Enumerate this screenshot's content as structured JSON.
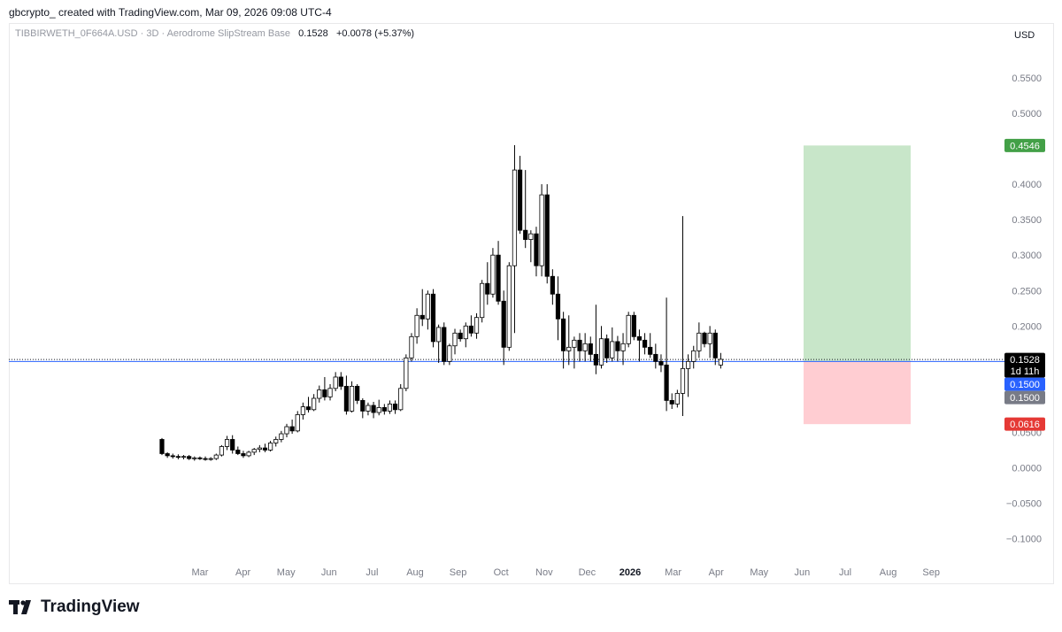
{
  "header": {
    "credit": "gbcrypto_ created with TradingView.com, Mar 09, 2026 09:08 UTC-4",
    "symbol": "TIBBIRWETH_0F664A.USD · 3D · Aerodrome SlipStream Base",
    "last_price": "0.1528",
    "change": "+0.0078 (+5.37%)",
    "currency": "USD"
  },
  "footer": {
    "brand": "TradingView"
  },
  "colors": {
    "up": "#ffffff",
    "down": "#000000",
    "profit_zone": "#c8e6c9",
    "loss_zone": "#ffcdd2",
    "target": "#43a047",
    "stop": "#e53935",
    "entry_line": "#2962ff"
  },
  "chart_data": {
    "type": "candlestick",
    "title": "",
    "ylim": [
      -0.12,
      0.56
    ],
    "y_ticks": [
      {
        "v": 0.55,
        "label": "0.5500"
      },
      {
        "v": 0.5,
        "label": "0.5000"
      },
      {
        "v": 0.4,
        "label": "0.4000"
      },
      {
        "v": 0.35,
        "label": "0.3500"
      },
      {
        "v": 0.3,
        "label": "0.3000"
      },
      {
        "v": 0.25,
        "label": "0.2500"
      },
      {
        "v": 0.2,
        "label": "0.2000"
      },
      {
        "v": 0.05,
        "label": "0.0500"
      },
      {
        "v": 0.0,
        "label": "0.0000"
      },
      {
        "v": -0.05,
        "label": "−0.0500"
      },
      {
        "v": -0.1,
        "label": "−0.1000"
      }
    ],
    "x_ticks": [
      "Mar",
      "Apr",
      "May",
      "Jun",
      "Jul",
      "Aug",
      "Sep",
      "Oct",
      "Nov",
      "Dec",
      "2026",
      "Mar",
      "Apr",
      "May",
      "Jun",
      "Jul",
      "Aug",
      "Sep"
    ],
    "price_labels": [
      {
        "name": "target",
        "value": 0.4546,
        "label": "0.4546",
        "bg": "#43a047"
      },
      {
        "name": "last",
        "value": 0.1528,
        "label": "0.1528",
        "sub": "1d 11h",
        "bg": "#000000"
      },
      {
        "name": "entry",
        "value": 0.15,
        "label": "0.1500",
        "bg": "#2962ff"
      },
      {
        "name": "entry-2",
        "value": 0.15,
        "label": "0.1500",
        "bg": "#787b86"
      },
      {
        "name": "stop",
        "value": 0.0616,
        "label": "0.0616",
        "bg": "#e53935"
      }
    ],
    "position": {
      "entry": 0.15,
      "target": 0.4546,
      "stop": 0.0616,
      "start": "May",
      "end": "Jul"
    },
    "candles": [
      [
        0.04,
        0.042,
        0.018,
        0.02
      ],
      [
        0.02,
        0.022,
        0.014,
        0.017
      ],
      [
        0.017,
        0.02,
        0.013,
        0.016
      ],
      [
        0.016,
        0.019,
        0.012,
        0.015
      ],
      [
        0.015,
        0.018,
        0.012,
        0.016
      ],
      [
        0.016,
        0.018,
        0.011,
        0.013
      ],
      [
        0.013,
        0.016,
        0.01,
        0.014
      ],
      [
        0.014,
        0.016,
        0.011,
        0.013
      ],
      [
        0.013,
        0.016,
        0.01,
        0.012
      ],
      [
        0.012,
        0.015,
        0.01,
        0.013
      ],
      [
        0.013,
        0.02,
        0.011,
        0.018
      ],
      [
        0.018,
        0.032,
        0.016,
        0.03
      ],
      [
        0.03,
        0.045,
        0.025,
        0.04
      ],
      [
        0.04,
        0.046,
        0.02,
        0.025
      ],
      [
        0.025,
        0.03,
        0.018,
        0.02
      ],
      [
        0.02,
        0.024,
        0.014,
        0.017
      ],
      [
        0.017,
        0.024,
        0.015,
        0.022
      ],
      [
        0.022,
        0.028,
        0.018,
        0.026
      ],
      [
        0.026,
        0.032,
        0.022,
        0.028
      ],
      [
        0.028,
        0.034,
        0.022,
        0.025
      ],
      [
        0.025,
        0.038,
        0.023,
        0.035
      ],
      [
        0.035,
        0.044,
        0.03,
        0.04
      ],
      [
        0.04,
        0.052,
        0.036,
        0.048
      ],
      [
        0.048,
        0.062,
        0.043,
        0.058
      ],
      [
        0.058,
        0.068,
        0.048,
        0.052
      ],
      [
        0.052,
        0.08,
        0.05,
        0.075
      ],
      [
        0.075,
        0.092,
        0.068,
        0.086
      ],
      [
        0.086,
        0.1,
        0.078,
        0.082
      ],
      [
        0.082,
        0.104,
        0.08,
        0.098
      ],
      [
        0.098,
        0.116,
        0.092,
        0.11
      ],
      [
        0.11,
        0.128,
        0.095,
        0.1
      ],
      [
        0.1,
        0.118,
        0.095,
        0.112
      ],
      [
        0.112,
        0.135,
        0.108,
        0.128
      ],
      [
        0.128,
        0.135,
        0.11,
        0.115
      ],
      [
        0.115,
        0.13,
        0.075,
        0.08
      ],
      [
        0.08,
        0.122,
        0.078,
        0.115
      ],
      [
        0.115,
        0.118,
        0.09,
        0.095
      ],
      [
        0.095,
        0.098,
        0.07,
        0.08
      ],
      [
        0.08,
        0.092,
        0.074,
        0.088
      ],
      [
        0.088,
        0.093,
        0.07,
        0.078
      ],
      [
        0.078,
        0.096,
        0.074,
        0.085
      ],
      [
        0.085,
        0.09,
        0.075,
        0.08
      ],
      [
        0.08,
        0.095,
        0.076,
        0.09
      ],
      [
        0.09,
        0.095,
        0.076,
        0.082
      ],
      [
        0.082,
        0.118,
        0.08,
        0.112
      ],
      [
        0.112,
        0.16,
        0.108,
        0.155
      ],
      [
        0.155,
        0.19,
        0.15,
        0.185
      ],
      [
        0.185,
        0.225,
        0.175,
        0.215
      ],
      [
        0.215,
        0.252,
        0.2,
        0.21
      ],
      [
        0.21,
        0.25,
        0.195,
        0.245
      ],
      [
        0.245,
        0.252,
        0.17,
        0.178
      ],
      [
        0.178,
        0.202,
        0.148,
        0.198
      ],
      [
        0.198,
        0.205,
        0.145,
        0.15
      ],
      [
        0.15,
        0.175,
        0.145,
        0.172
      ],
      [
        0.172,
        0.196,
        0.16,
        0.19
      ],
      [
        0.19,
        0.195,
        0.178,
        0.182
      ],
      [
        0.182,
        0.205,
        0.17,
        0.2
      ],
      [
        0.2,
        0.215,
        0.185,
        0.19
      ],
      [
        0.19,
        0.218,
        0.182,
        0.212
      ],
      [
        0.212,
        0.265,
        0.205,
        0.26
      ],
      [
        0.26,
        0.29,
        0.23,
        0.245
      ],
      [
        0.245,
        0.31,
        0.24,
        0.3
      ],
      [
        0.3,
        0.32,
        0.23,
        0.235
      ],
      [
        0.235,
        0.25,
        0.145,
        0.17
      ],
      [
        0.17,
        0.29,
        0.165,
        0.285
      ],
      [
        0.285,
        0.455,
        0.19,
        0.42
      ],
      [
        0.42,
        0.44,
        0.33,
        0.335
      ],
      [
        0.335,
        0.42,
        0.31,
        0.322
      ],
      [
        0.322,
        0.335,
        0.29,
        0.33
      ],
      [
        0.33,
        0.34,
        0.27,
        0.285
      ],
      [
        0.285,
        0.4,
        0.27,
        0.385
      ],
      [
        0.385,
        0.4,
        0.26,
        0.27
      ],
      [
        0.27,
        0.28,
        0.23,
        0.245
      ],
      [
        0.245,
        0.27,
        0.18,
        0.21
      ],
      [
        0.21,
        0.22,
        0.14,
        0.165
      ],
      [
        0.165,
        0.215,
        0.145,
        0.17
      ],
      [
        0.17,
        0.185,
        0.14,
        0.18
      ],
      [
        0.18,
        0.19,
        0.15,
        0.165
      ],
      [
        0.165,
        0.19,
        0.15,
        0.175
      ],
      [
        0.175,
        0.185,
        0.15,
        0.16
      ],
      [
        0.16,
        0.23,
        0.132,
        0.145
      ],
      [
        0.145,
        0.2,
        0.14,
        0.182
      ],
      [
        0.182,
        0.188,
        0.148,
        0.155
      ],
      [
        0.155,
        0.198,
        0.15,
        0.178
      ],
      [
        0.178,
        0.186,
        0.15,
        0.165
      ],
      [
        0.165,
        0.19,
        0.145,
        0.175
      ],
      [
        0.175,
        0.22,
        0.17,
        0.215
      ],
      [
        0.215,
        0.22,
        0.18,
        0.185
      ],
      [
        0.185,
        0.195,
        0.15,
        0.18
      ],
      [
        0.18,
        0.19,
        0.16,
        0.17
      ],
      [
        0.17,
        0.19,
        0.155,
        0.16
      ],
      [
        0.16,
        0.175,
        0.14,
        0.15
      ],
      [
        0.15,
        0.16,
        0.135,
        0.145
      ],
      [
        0.145,
        0.24,
        0.08,
        0.095
      ],
      [
        0.095,
        0.105,
        0.083,
        0.09
      ],
      [
        0.09,
        0.11,
        0.085,
        0.105
      ],
      [
        0.105,
        0.355,
        0.073,
        0.14
      ],
      [
        0.14,
        0.16,
        0.1,
        0.15
      ],
      [
        0.15,
        0.172,
        0.14,
        0.165
      ],
      [
        0.165,
        0.205,
        0.155,
        0.19
      ],
      [
        0.19,
        0.192,
        0.17,
        0.175
      ],
      [
        0.175,
        0.2,
        0.155,
        0.19
      ],
      [
        0.19,
        0.195,
        0.145,
        0.155
      ],
      [
        0.145,
        0.162,
        0.14,
        0.153
      ]
    ]
  }
}
